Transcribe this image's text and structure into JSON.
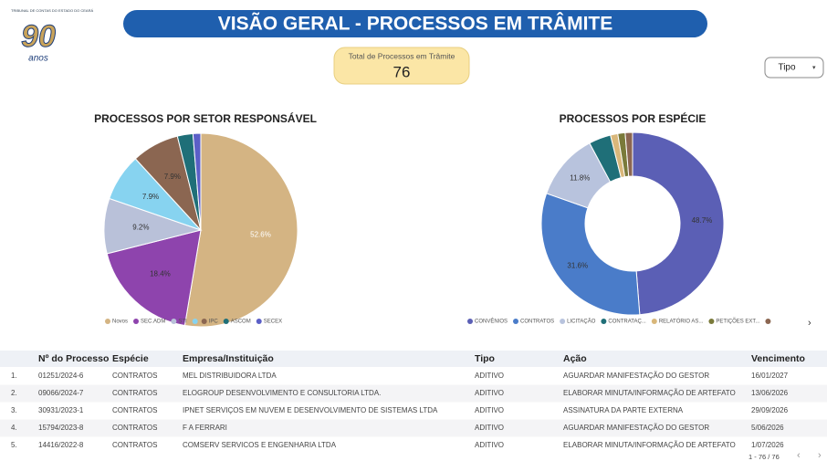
{
  "logo": {
    "caption": "TRIBUNAL DE CONTAS DO ESTADO DO CEARÁ",
    "number": "90",
    "word": "anos"
  },
  "header": {
    "title": "VISÃO GERAL - PROCESSOS EM TRÂMITE"
  },
  "kpi": {
    "label": "Total de Processos em Trâmite",
    "value": 76
  },
  "filter": {
    "label": "Tipo"
  },
  "chart_data": [
    {
      "type": "pie",
      "title": "PROCESSOS POR SETOR RESPONSÁVEL",
      "categories": [
        "Novos",
        "SEC.ADM",
        "STI",
        null,
        "IPC",
        "ASCOM",
        "SECEX"
      ],
      "values": [
        52.6,
        18.4,
        9.2,
        7.9,
        7.9,
        2.6,
        1.3
      ],
      "value_labels": [
        "52.6%",
        "18.4%",
        "9.2%",
        "7.9%",
        "7.9%",
        null,
        null
      ],
      "colors": [
        "#d4b483",
        "#8e44ad",
        "#b9c1d9",
        "#87d3f0",
        "#8b6651",
        "#1f6f78",
        "#5b5fc7"
      ]
    },
    {
      "type": "donut",
      "title": "PROCESSOS POR ESPÉCIE",
      "categories": [
        "CONVÊNIOS",
        "CONTRATOS",
        "LICITAÇÃO",
        "CONTRATAÇ...",
        "RELATÓRIO AS...",
        "PETIÇÕES EXT...",
        null
      ],
      "values": [
        48.7,
        31.6,
        11.8,
        3.9,
        1.3,
        1.3,
        1.3
      ],
      "value_labels": [
        "48.7%",
        "31.6%",
        "11.8%",
        null,
        null,
        null,
        null
      ],
      "colors": [
        "#5b5fb5",
        "#4a7cc9",
        "#b8c3dd",
        "#1f6f78",
        "#d9b77a",
        "#7a7a3a",
        "#8b6651"
      ]
    }
  ],
  "table": {
    "columns": [
      "",
      "Nº do Processo",
      "Espécie",
      "Empresa/Instituição",
      "Tipo",
      "Ação",
      "Vencimento"
    ],
    "rows": [
      [
        "1.",
        "01251/2024-6",
        "CONTRATOS",
        "MEL DISTRIBUIDORA LTDA",
        "ADITIVO",
        "AGUARDAR MANIFESTAÇÃO DO GESTOR",
        "16/01/2027"
      ],
      [
        "2.",
        "09066/2024-7",
        "CONTRATOS",
        "ELOGROUP DESENVOLVIMENTO E CONSULTORIA LTDA.",
        "ADITIVO",
        "ELABORAR MINUTA/INFORMAÇÃO DE ARTEFATO",
        "13/06/2026"
      ],
      [
        "3.",
        "30931/2023-1",
        "CONTRATOS",
        "IPNET SERVIÇOS EM NUVEM E DESENVOLVIMENTO DE SISTEMAS LTDA",
        "ADITIVO",
        "ASSINATURA DA PARTE EXTERNA",
        "29/09/2026"
      ],
      [
        "4.",
        "15794/2023-8",
        "CONTRATOS",
        "F A FERRARI",
        "ADITIVO",
        "AGUARDAR MANIFESTAÇÃO DO GESTOR",
        "5/06/2026"
      ],
      [
        "5.",
        "14416/2022-8",
        "CONTRATOS",
        "COMSERV SERVICOS E ENGENHARIA LTDA",
        "ADITIVO",
        "ELABORAR MINUTA/INFORMAÇÃO DE ARTEFATO",
        "1/07/2026"
      ]
    ],
    "pagination": "1 - 76 / 76"
  }
}
